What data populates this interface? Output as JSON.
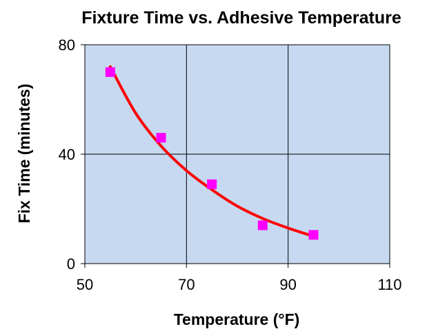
{
  "chart_data": {
    "type": "scatter",
    "title": "Fixture Time vs. Adhesive Temperature",
    "xlabel": "Temperature (°F)",
    "ylabel": "Fix Time (minutes)",
    "xlim": [
      50,
      110
    ],
    "ylim": [
      0,
      80
    ],
    "x_ticks": [
      50,
      70,
      90,
      110
    ],
    "y_ticks": [
      0,
      40,
      80
    ],
    "grid": true,
    "legend": "none",
    "plot_background": "#c6d9f1",
    "series": [
      {
        "type": "scatter",
        "marker": "square",
        "color": "#ff00ff",
        "x": [
          55,
          65,
          75,
          85,
          95
        ],
        "y": [
          70,
          46,
          29,
          14,
          10.5
        ]
      },
      {
        "type": "line",
        "trendline": "exponential",
        "color": "#ff0000",
        "x": [
          55,
          60,
          65,
          70,
          75,
          80,
          85,
          90,
          95
        ],
        "y": [
          72,
          55,
          43,
          34,
          27,
          21,
          16.5,
          13,
          10
        ]
      }
    ]
  }
}
